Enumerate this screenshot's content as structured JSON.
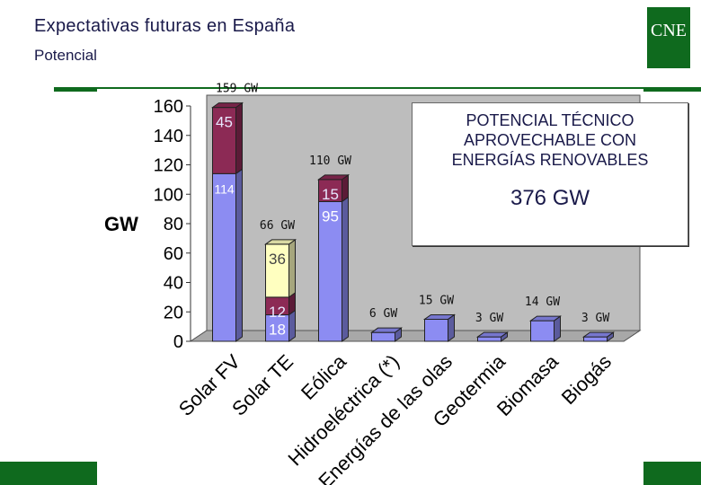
{
  "header": {
    "title": "Expectativas futuras en España",
    "subtitle": "Potencial",
    "logo_text": "CNE"
  },
  "callout": {
    "line1": "POTENCIAL TÉCNICO",
    "line2": "APROVECHABLE CON",
    "line3": "ENERGÍAS RENOVABLES",
    "total": "376 GW"
  },
  "colors": {
    "brand_green": "#0f6a1e",
    "series_1": "#8c8cf2",
    "series_2": "#8c2a55",
    "series_3": "#ffffc0",
    "plot_bg": "#bdbdbd"
  },
  "chart_data": {
    "type": "bar",
    "stacked": true,
    "ylabel": "GW",
    "ylim": [
      0,
      160
    ],
    "yticks": [
      0,
      20,
      40,
      60,
      80,
      100,
      120,
      140,
      160
    ],
    "categories": [
      "Solar FV",
      "Solar TE",
      "Eólica",
      "Hidroeléctrica (*)",
      "Energías de las olas",
      "Geotermia",
      "Biomasa",
      "Biogás"
    ],
    "series": [
      {
        "values": [
          114,
          18,
          95,
          6,
          15,
          3,
          14,
          3
        ],
        "color": "#8c8cf2"
      },
      {
        "values": [
          45,
          12,
          15,
          0,
          0,
          0,
          0,
          0
        ],
        "color": "#8c2a55"
      },
      {
        "values": [
          0,
          36,
          0,
          0,
          0,
          0,
          0,
          0
        ],
        "color": "#ffffc0"
      }
    ],
    "segment_labels": [
      [
        "114",
        "18",
        "95",
        "",
        "",
        "",
        "",
        ""
      ],
      [
        "45",
        "12",
        "15",
        "",
        "",
        "",
        "",
        ""
      ],
      [
        "",
        "36",
        "",
        "",
        "",
        "",
        "",
        ""
      ]
    ],
    "totals": [
      "159 GW",
      "66 GW",
      "110 GW",
      "6 GW",
      "15 GW",
      "3 GW",
      "14 GW",
      "3 GW"
    ]
  }
}
